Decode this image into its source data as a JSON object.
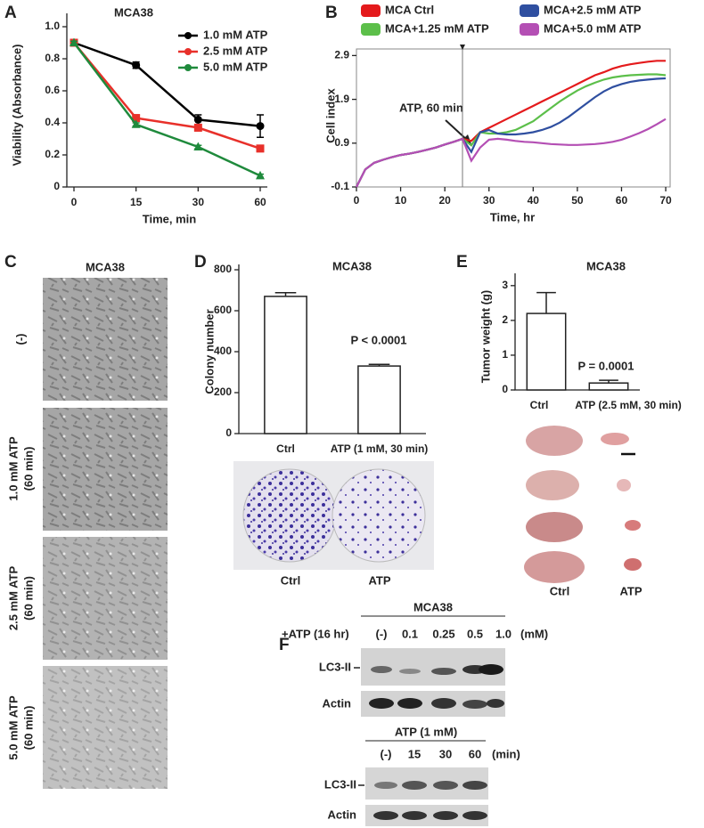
{
  "panel_labels": [
    "A",
    "B",
    "C",
    "D",
    "E",
    "F"
  ],
  "chart_data": [
    {
      "type": "line",
      "title": "MCA38",
      "xlabel": "Time, min",
      "ylabel": "Viability (Absorbance)",
      "categories": [
        "0",
        "15",
        "30",
        "60"
      ],
      "ylim": [
        0,
        1.05
      ],
      "yticks": [
        0,
        0.2,
        0.4,
        0.6,
        0.8,
        {
          "value": 1,
          "label": "1.0"
        }
      ],
      "legend": "upper right",
      "series": [
        {
          "name": "1.0 mM ATP",
          "color": "#000000",
          "marker": "circle",
          "values": [
            0.9,
            0.76,
            0.42,
            0.38
          ],
          "errors": [
            0.01,
            0.02,
            0.03,
            0.07
          ]
        },
        {
          "name": "2.5 mM ATP",
          "color": "#e8302a",
          "marker": "square",
          "values": [
            0.9,
            0.43,
            0.37,
            0.24
          ],
          "errors": [
            0.01,
            0.02,
            0.02,
            0.02
          ]
        },
        {
          "name": "5.0 mM ATP",
          "color": "#1f8a3c",
          "marker": "triangle",
          "values": [
            0.9,
            0.39,
            0.25,
            0.07
          ],
          "errors": [
            0.01,
            0.01,
            0.01,
            0.01
          ]
        }
      ]
    },
    {
      "type": "line",
      "xlabel": "Time, hr",
      "ylabel": "Cell index",
      "annotation": "ATP, 60 min",
      "treatment_time": 24,
      "xlim": [
        0,
        71
      ],
      "xticks": [
        0,
        10,
        20,
        30,
        40,
        50,
        60,
        70
      ],
      "ylim": [
        -0.1,
        3.05
      ],
      "yticks": [
        -0.1,
        0.9,
        1.9,
        2.9
      ],
      "legend": "top",
      "x": [
        0,
        2,
        4,
        6,
        8,
        10,
        12,
        14,
        16,
        18,
        20,
        22,
        24,
        26,
        28,
        30,
        32,
        34,
        36,
        38,
        40,
        42,
        44,
        46,
        48,
        50,
        52,
        54,
        56,
        58,
        60,
        62,
        64,
        66,
        68,
        70
      ],
      "series": [
        {
          "name": "MCA Ctrl",
          "color": "#e41a1c",
          "values": [
            -0.1,
            0.3,
            0.45,
            0.52,
            0.58,
            0.63,
            0.66,
            0.7,
            0.75,
            0.8,
            0.87,
            0.93,
            1.0,
            0.95,
            1.15,
            1.25,
            1.35,
            1.45,
            1.55,
            1.65,
            1.75,
            1.85,
            1.95,
            2.05,
            2.15,
            2.25,
            2.35,
            2.45,
            2.52,
            2.6,
            2.66,
            2.7,
            2.73,
            2.76,
            2.78,
            2.78
          ]
        },
        {
          "name": "MCA+1.25 mM ATP",
          "color": "#5cbf4a",
          "values": [
            -0.1,
            0.3,
            0.45,
            0.52,
            0.58,
            0.63,
            0.66,
            0.7,
            0.75,
            0.8,
            0.87,
            0.93,
            1.0,
            0.85,
            1.15,
            1.12,
            1.12,
            1.15,
            1.2,
            1.3,
            1.4,
            1.55,
            1.7,
            1.85,
            1.98,
            2.1,
            2.2,
            2.28,
            2.35,
            2.4,
            2.43,
            2.45,
            2.46,
            2.47,
            2.47,
            2.45
          ]
        },
        {
          "name": "MCA+2.5 mM ATP",
          "color": "#2f4fa0",
          "values": [
            -0.1,
            0.3,
            0.45,
            0.52,
            0.58,
            0.63,
            0.66,
            0.7,
            0.75,
            0.8,
            0.87,
            0.93,
            1.0,
            0.7,
            1.15,
            1.2,
            1.12,
            1.1,
            1.1,
            1.12,
            1.15,
            1.2,
            1.27,
            1.37,
            1.5,
            1.65,
            1.8,
            1.95,
            2.08,
            2.18,
            2.25,
            2.3,
            2.33,
            2.35,
            2.37,
            2.38
          ]
        },
        {
          "name": "MCA+5.0 mM ATP",
          "color": "#b44fb4",
          "values": [
            -0.1,
            0.3,
            0.45,
            0.52,
            0.58,
            0.63,
            0.66,
            0.7,
            0.75,
            0.8,
            0.87,
            0.93,
            1.0,
            0.5,
            0.8,
            0.98,
            1.0,
            0.98,
            0.95,
            0.93,
            0.92,
            0.9,
            0.88,
            0.87,
            0.86,
            0.86,
            0.87,
            0.88,
            0.9,
            0.93,
            0.98,
            1.05,
            1.13,
            1.22,
            1.33,
            1.45
          ]
        }
      ]
    },
    {
      "type": "bar",
      "title": "MCA38",
      "ylabel": "Colony number",
      "annotation": "P < 0.0001",
      "categories": [
        "Ctrl",
        "ATP (1 mM, 30 min)"
      ],
      "values": [
        670,
        330
      ],
      "errors": [
        18,
        8
      ],
      "color": "#ffffff",
      "ylim": [
        0,
        800
      ],
      "yticks": [
        0,
        200,
        400,
        600,
        800
      ]
    },
    {
      "type": "bar",
      "title": "MCA38",
      "ylabel": "Tumor weight (g)",
      "annotation": "P = 0.0001",
      "categories": [
        "Ctrl",
        "ATP (2.5 mM, 30 min)"
      ],
      "values": [
        2.2,
        0.2
      ],
      "errors": [
        0.6,
        0.08
      ],
      "color": "#ffffff",
      "ylim": [
        0,
        3.2
      ],
      "yticks": [
        0,
        1,
        2,
        3
      ]
    }
  ],
  "panel_c": {
    "title": "MCA38",
    "rows": [
      [
        "(-)"
      ],
      [
        "1.0 mM ATP",
        "(60 min)"
      ],
      [
        "2.5 mM ATP",
        "(60 min)"
      ],
      [
        "5.0 mM ATP",
        "(60 min)"
      ]
    ]
  },
  "panel_d_photo": {
    "labels": [
      "Ctrl",
      "ATP"
    ]
  },
  "panel_e_photo": {
    "labels": [
      "Ctrl",
      "ATP"
    ]
  },
  "panel_f": [
    {
      "header": "MCA38",
      "treatment": "+ATP (16 hr)",
      "lanes": [
        "(-)",
        "0.1",
        "0.25",
        "0.5",
        "1.0"
      ],
      "unit": "(mM)",
      "rows": [
        "LC3-II",
        "Actin"
      ]
    },
    {
      "header": "ATP (1 mM)",
      "lanes": [
        "(-)",
        "15",
        "30",
        "60"
      ],
      "unit": "(min)",
      "rows": [
        "LC3-II",
        "Actin"
      ]
    }
  ]
}
